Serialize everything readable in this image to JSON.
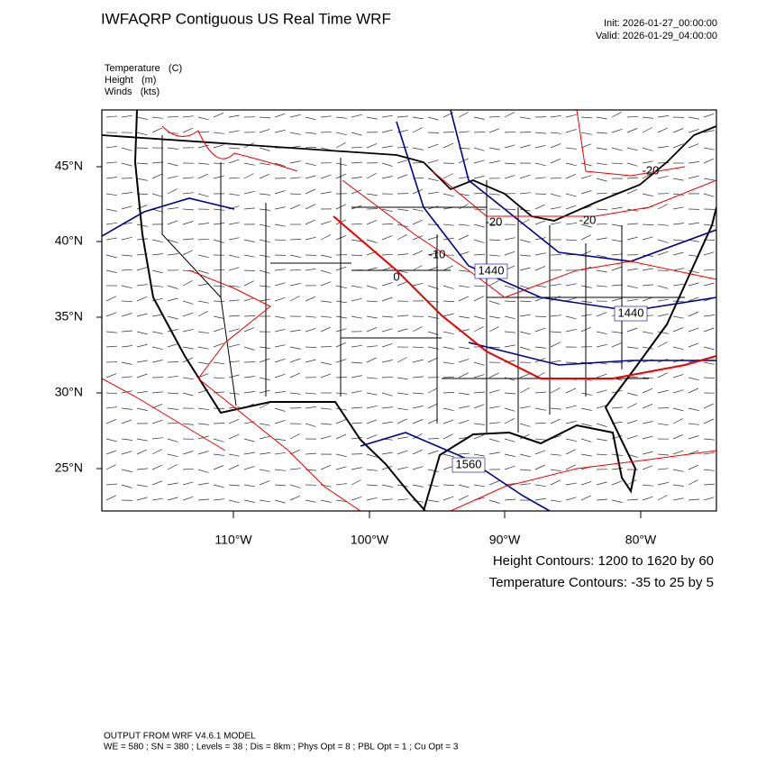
{
  "header": {
    "title": "IWFAQRP Contiguous US Real Time WRF",
    "init": "Init: 2026-01-27_00:00:00",
    "valid": "Valid: 2026-01-29_04:00:00"
  },
  "fields": [
    "Temperature   (C)",
    "Height   (m)",
    "Winds   (kts)"
  ],
  "lat_labels": [
    "45°N",
    "40°N",
    "35°N",
    "30°N",
    "25°N"
  ],
  "lon_labels": [
    "110°W",
    "100°W",
    "90°W",
    "80°W"
  ],
  "height_contour_labels": [
    "1440",
    "1440",
    "1560"
  ],
  "temperature_contour_labels": [
    "-20",
    "-20",
    "-20",
    "-10",
    "0"
  ],
  "legend": [
    "Height Contours: 1200 to 1620 by 60",
    "Temperature Contours: -35 to 25 by 5"
  ],
  "footer": [
    "OUTPUT FROM WRF V4.6.1 MODEL",
    "WE = 580 ; SN = 380 ; Levels = 38 ; Dis = 8km ; Phys Opt = 8 ; PBL Opt = 1 ; Cu Opt = 3"
  ]
}
